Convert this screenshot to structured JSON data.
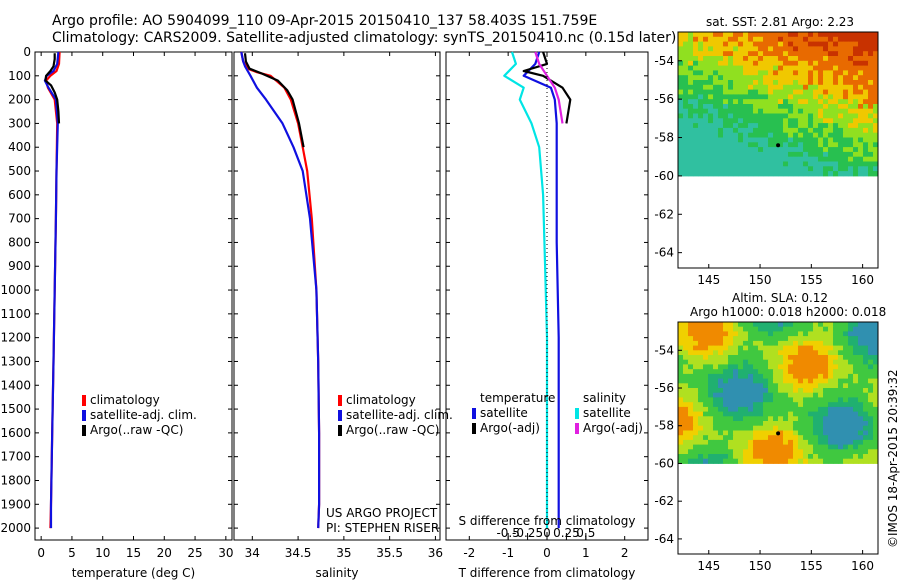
{
  "title": {
    "line1": "Argo profile: AO 5904099_110 09-Apr-2015 20150410_137 58.403S 151.759E",
    "line2": "Climatology: CARS2009. Satellite-adjusted climatology: synTS_20150410.nc (0.15d later)"
  },
  "depth_ticks": [
    "0",
    "100",
    "200",
    "300",
    "400",
    "500",
    "600",
    "700",
    "800",
    "900",
    "1000",
    "1100",
    "1200",
    "1300",
    "1400",
    "1500",
    "1600",
    "1700",
    "1800",
    "1900",
    "2000"
  ],
  "project": {
    "line1": "US ARGO PROJECT",
    "line2": "PI: STEPHEN RISER"
  },
  "side_stamp": "©IMOS 18-Apr-2015 20:39:32",
  "colors": {
    "climatology": "#ff0000",
    "satellite": "#1010e0",
    "argo": "#000000",
    "satellite_s": "#00e5e5",
    "argo_s": "#e020e0"
  },
  "legend_profile": {
    "climatology": "climatology",
    "satellite": "satellite-adj. clim.",
    "argo": "Argo(..raw -QC)"
  },
  "legend_diff": {
    "temperature_header": "temperature",
    "salinity_header": "salinity",
    "t_satellite": "satellite",
    "t_argo": "Argo(-adj)",
    "s_satellite": "satellite",
    "s_argo": "Argo(-adj)"
  },
  "maps": {
    "sst_title": "sat. SST: 2.81  Argo: 2.23",
    "sla_title1": "Altim. SLA: 0.12",
    "sla_title2": "Argo h1000: 0.018 h2000: 0.018",
    "lon_ticks": [
      "145",
      "150",
      "155",
      "160"
    ],
    "lat_ticks": [
      "-54",
      "-56",
      "-58",
      "-60",
      "-62",
      "-64"
    ],
    "lon_range": [
      142,
      161.5
    ],
    "lat_range": [
      -64.8,
      -52.5
    ],
    "data_lat_min": -60,
    "float_position": [
      151.759,
      -58.403
    ]
  },
  "chart_data": [
    {
      "type": "line",
      "panel": "temperature",
      "xlabel": "temperature (deg C)",
      "ylabel": "",
      "xlim": [
        -1,
        31
      ],
      "ylim": [
        2050,
        0
      ],
      "x_ticks": [
        "0",
        "5",
        "10",
        "15",
        "20",
        "25",
        "30"
      ],
      "grid": false,
      "series": [
        {
          "name": "climatology",
          "depth": [
            0,
            50,
            80,
            100,
            120,
            150,
            200,
            300,
            500,
            700,
            1000,
            1300,
            1600,
            1900,
            2000
          ],
          "values": [
            3.0,
            2.9,
            2.5,
            1.5,
            0.8,
            1.1,
            2.2,
            2.6,
            2.5,
            2.4,
            2.2,
            2.0,
            1.8,
            1.6,
            1.5
          ]
        },
        {
          "name": "satellite-adj. clim.",
          "depth": [
            0,
            50,
            80,
            100,
            120,
            150,
            200,
            300,
            500,
            700,
            1000,
            1300,
            1600,
            1900,
            2000
          ],
          "values": [
            2.8,
            2.6,
            2.0,
            0.9,
            0.6,
            1.2,
            2.4,
            2.7,
            2.5,
            2.4,
            2.2,
            2.0,
            1.8,
            1.6,
            1.6
          ]
        },
        {
          "name": "Argo(..raw -QC)",
          "depth": [
            5,
            30,
            60,
            80,
            100,
            120,
            140,
            170,
            200,
            250,
            300
          ],
          "values": [
            2.2,
            2.2,
            2.0,
            1.5,
            0.8,
            0.7,
            1.6,
            2.2,
            2.6,
            2.8,
            2.9
          ]
        }
      ]
    },
    {
      "type": "line",
      "panel": "salinity",
      "xlabel": "salinity",
      "ylabel": "",
      "xlim": [
        33.8,
        36.05
      ],
      "ylim": [
        2050,
        0
      ],
      "x_ticks": [
        "34",
        "34.5",
        "35",
        "35.5",
        "36"
      ],
      "grid": false,
      "series": [
        {
          "name": "climatology",
          "depth": [
            0,
            40,
            70,
            85,
            100,
            150,
            200,
            300,
            400,
            500,
            700,
            1000,
            1300,
            1600,
            1900,
            2000
          ],
          "values": [
            33.88,
            33.9,
            33.95,
            34.05,
            34.2,
            34.35,
            34.42,
            34.5,
            34.55,
            34.6,
            34.65,
            34.7,
            34.72,
            34.73,
            34.73,
            34.72
          ]
        },
        {
          "name": "satellite-adj. clim.",
          "depth": [
            0,
            40,
            60,
            80,
            100,
            150,
            200,
            300,
            400,
            500,
            700,
            1000,
            1300,
            1600,
            1900,
            2000
          ],
          "values": [
            33.88,
            33.9,
            33.92,
            33.95,
            33.98,
            34.05,
            34.15,
            34.33,
            34.45,
            34.55,
            34.63,
            34.7,
            34.72,
            34.73,
            34.73,
            34.72
          ]
        },
        {
          "name": "Argo(..raw -QC)",
          "depth": [
            5,
            40,
            70,
            90,
            120,
            160,
            200,
            300,
            400
          ],
          "values": [
            33.92,
            33.93,
            33.97,
            34.1,
            34.28,
            34.38,
            34.44,
            34.51,
            34.56
          ]
        }
      ]
    },
    {
      "type": "line",
      "panel": "difference",
      "xlabel": "T difference from climatology",
      "x2label": "S difference from climatology",
      "xlim": [
        -2.6,
        2.6
      ],
      "ylim": [
        2050,
        0
      ],
      "x_ticks": [
        "-2",
        "-1",
        "0",
        "1",
        "2"
      ],
      "x2_ticks": [
        "-0.5",
        "-0.25",
        "0",
        "0.25",
        "0.5"
      ],
      "grid": false,
      "series": [
        {
          "name": "T satellite",
          "depth": [
            0,
            50,
            100,
            150,
            200,
            300,
            500,
            800,
            1200,
            1600,
            2000
          ],
          "values": [
            -0.2,
            -0.3,
            -0.6,
            0.1,
            0.2,
            0.25,
            0.25,
            0.25,
            0.3,
            0.3,
            0.3
          ]
        },
        {
          "name": "T Argo(-adj)",
          "depth": [
            0,
            50,
            80,
            100,
            150,
            200,
            300
          ],
          "values": [
            -0.1,
            0.0,
            -0.6,
            -0.1,
            0.4,
            0.6,
            0.5
          ]
        },
        {
          "name": "S satellite",
          "depth": [
            0,
            50,
            100,
            150,
            200,
            300,
            400,
            600,
            900,
            1200,
            1600,
            2000
          ],
          "values": [
            -0.9,
            -0.8,
            -1.1,
            -0.6,
            -0.7,
            -0.4,
            -0.2,
            -0.1,
            -0.05,
            0.0,
            0.0,
            0.0
          ]
        },
        {
          "name": "S Argo(-adj)",
          "depth": [
            0,
            50,
            100,
            150,
            200,
            300
          ],
          "values": [
            -0.3,
            -0.2,
            0.0,
            0.2,
            0.3,
            0.4
          ]
        }
      ]
    }
  ]
}
